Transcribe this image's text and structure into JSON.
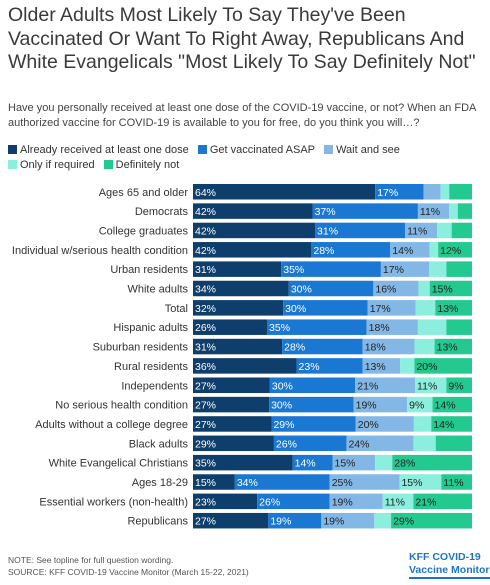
{
  "title": "Older Adults Most Likely To Say They've Been Vaccinated Or Want To Right Away, Republicans And White Evangelicals \"Most Likely To Say Definitely Not\"",
  "subtitle": "Have you personally received at least one dose of the COVID-19 vaccine, or not? When an FDA authorized vaccine for COVID-19 is available to you for free, do you think you will…?",
  "note_line1": "NOTE: See topline for full question wording.",
  "note_line2": "SOURCE: KFF COVID-19 Vaccine Monitor (March 15-22, 2021)",
  "brand_line1": "KFF COVID-19",
  "brand_line2": "Vaccine Monitor",
  "colors": [
    "#0e3e6b",
    "#1a77d2",
    "#83b8e6",
    "#8ceedc",
    "#23c98e"
  ],
  "chart_data": {
    "type": "bar",
    "orientation": "horizontal",
    "stacked": true,
    "xlim": [
      0,
      100
    ],
    "legend_position": "top",
    "categories": [
      "Ages 65 and older",
      "Democrats",
      "College graduates",
      "Individual w/serious health condition",
      "Urban residents",
      "White adults",
      "Total",
      "Hispanic adults",
      "Suburban residents",
      "Rural residents",
      "Independents",
      "No serious health condition",
      "Adults without a college degree",
      "Black adults",
      "White Evangelical Christians",
      "Ages 18-29",
      "Essential workers (non-health)",
      "Republicans"
    ],
    "series": [
      {
        "name": "Already received at least one dose",
        "values": [
          64,
          42,
          42,
          42,
          31,
          34,
          32,
          26,
          31,
          36,
          27,
          27,
          27,
          29,
          35,
          15,
          23,
          27
        ]
      },
      {
        "name": "Get vaccinated ASAP",
        "values": [
          17,
          37,
          31,
          28,
          35,
          30,
          30,
          35,
          28,
          23,
          30,
          30,
          29,
          26,
          14,
          34,
          26,
          19
        ]
      },
      {
        "name": "Wait and see",
        "values": [
          6,
          11,
          11,
          14,
          17,
          16,
          17,
          18,
          18,
          13,
          21,
          19,
          20,
          24,
          15,
          25,
          19,
          19
        ]
      },
      {
        "name": "Only if required",
        "values": [
          3,
          3,
          5,
          3,
          6,
          4,
          7,
          10,
          7,
          5,
          11,
          9,
          6,
          8,
          6,
          15,
          11,
          6
        ]
      },
      {
        "name": "Definitely not",
        "values": [
          8,
          5,
          7,
          12,
          9,
          15,
          13,
          9,
          13,
          20,
          9,
          14,
          14,
          13,
          28,
          11,
          21,
          29
        ]
      }
    ],
    "labels": [
      [
        "64%",
        "17%",
        "",
        "",
        ""
      ],
      [
        "42%",
        "37%",
        "11%",
        "",
        ""
      ],
      [
        "42%",
        "31%",
        "11%",
        "",
        ""
      ],
      [
        "42%",
        "28%",
        "14%",
        "",
        "12%"
      ],
      [
        "31%",
        "35%",
        "17%",
        "",
        ""
      ],
      [
        "34%",
        "30%",
        "16%",
        "",
        "15%"
      ],
      [
        "32%",
        "30%",
        "17%",
        "",
        "13%"
      ],
      [
        "26%",
        "35%",
        "18%",
        "",
        ""
      ],
      [
        "31%",
        "28%",
        "18%",
        "",
        "13%"
      ],
      [
        "36%",
        "23%",
        "13%",
        "",
        "20%"
      ],
      [
        "27%",
        "30%",
        "21%",
        "11%",
        "9%"
      ],
      [
        "27%",
        "30%",
        "19%",
        "9%",
        "14%"
      ],
      [
        "27%",
        "29%",
        "20%",
        "",
        "14%"
      ],
      [
        "29%",
        "26%",
        "24%",
        "",
        ""
      ],
      [
        "35%",
        "14%",
        "15%",
        "",
        "28%"
      ],
      [
        "15%",
        "34%",
        "25%",
        "15%",
        "11%"
      ],
      [
        "23%",
        "26%",
        "19%",
        "11%",
        "21%"
      ],
      [
        "27%",
        "19%",
        "19%",
        "",
        "29%"
      ]
    ]
  }
}
